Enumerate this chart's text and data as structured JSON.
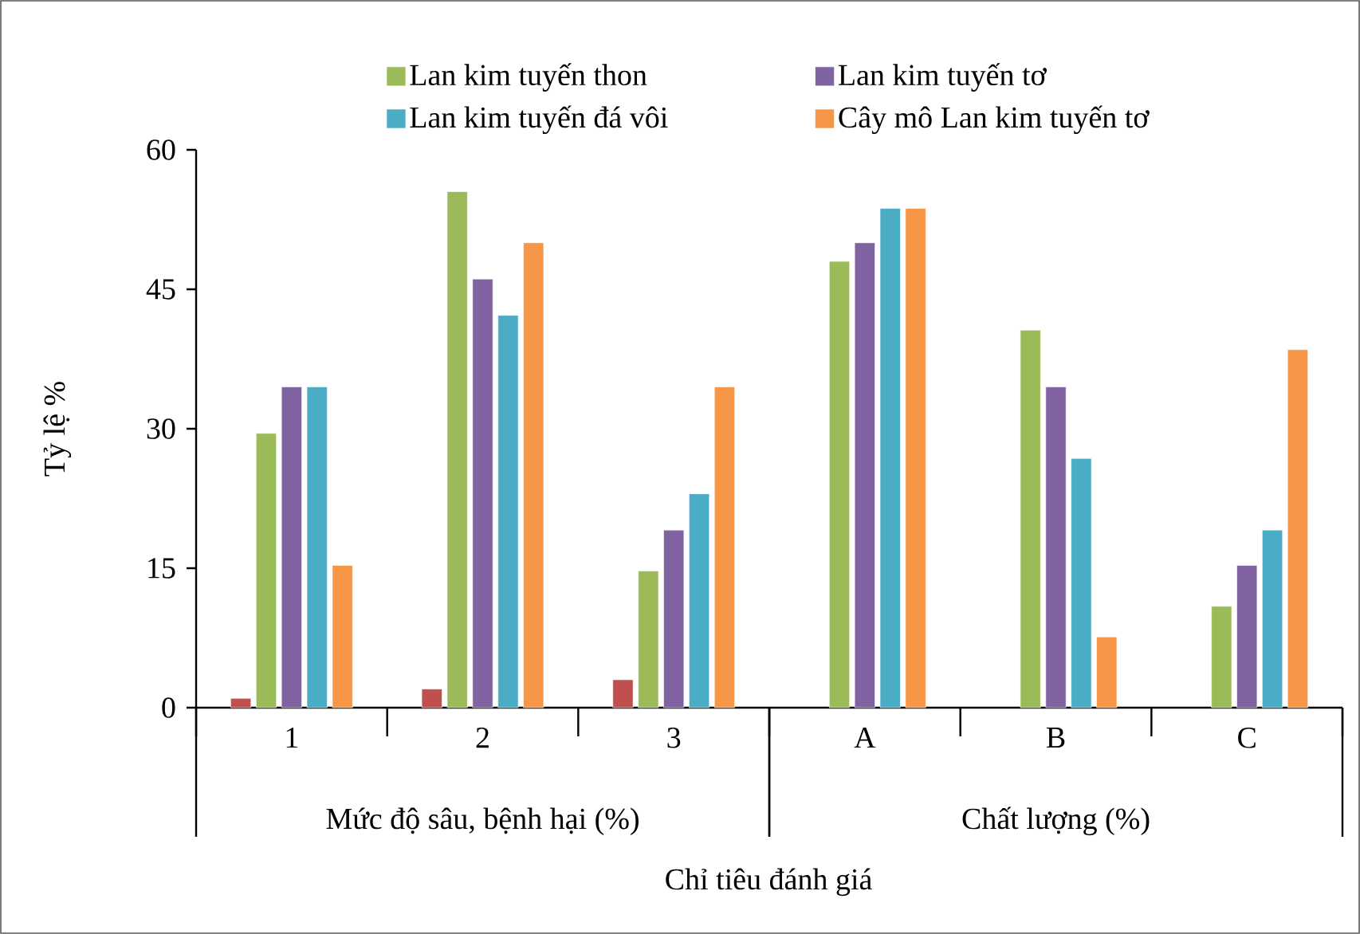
{
  "chart_data": {
    "type": "bar",
    "xlabel": "Chỉ tiêu đánh giá",
    "ylabel": "Tỷ lệ %",
    "categories": [
      "1",
      "2",
      "3",
      "A",
      "B",
      "C"
    ],
    "series": [
      {
        "color": "#c0504d",
        "values": [
          1,
          2,
          3,
          null,
          null,
          null
        ]
      },
      {
        "name": "Lan kim tuyến thon",
        "color": "#9bbb59",
        "values": [
          29.5,
          55.5,
          14.7,
          48.0,
          40.6,
          10.9
        ]
      },
      {
        "name": "Lan kim tuyến tơ",
        "color": "#8064a2",
        "values": [
          34.5,
          46.1,
          19.1,
          50.0,
          34.5,
          15.3
        ]
      },
      {
        "name": "Lan kim tuyến đá vôi",
        "color": "#4bacc6",
        "values": [
          34.5,
          42.2,
          23.0,
          53.7,
          26.8,
          19.1
        ]
      },
      {
        "name": "Cây mô Lan kim tuyến tơ",
        "color": "#f79646",
        "values": [
          15.3,
          50.0,
          34.5,
          53.7,
          7.6,
          38.5
        ]
      }
    ],
    "ylim": [
      0,
      60
    ],
    "yticks": [
      0,
      15,
      30,
      45,
      60
    ],
    "legend": "top",
    "annotations": [
      "Mức độ sâu, bệnh hại (%)",
      "Chất lượng (%)"
    ]
  }
}
